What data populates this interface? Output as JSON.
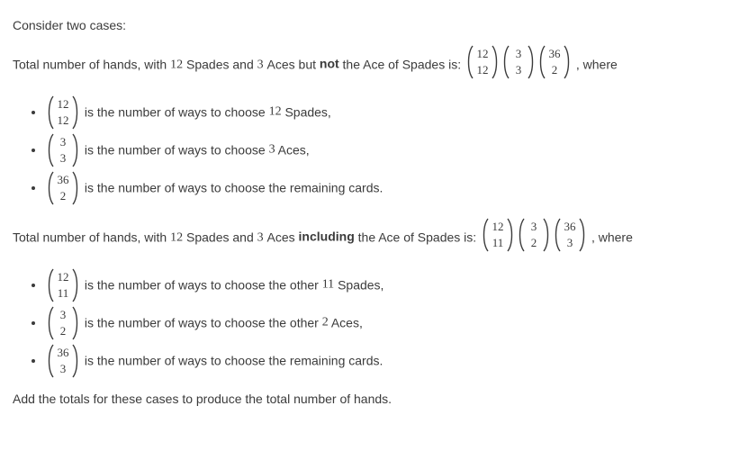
{
  "text_color": "#3b3b3b",
  "background_color": "#ffffff",
  "body_fontsize": 14,
  "math_fontsize": 13,
  "binom_height": 40,
  "intro": "Consider two cases:",
  "case1": {
    "lead": "Total number of hands, with ",
    "spades_n": "12",
    "spades_word": " Spades and ",
    "aces_n": "3",
    "aces_word": " Aces but ",
    "emph": "not",
    "after_emph": " the Ace of Spades is: ",
    "trailer": ", where",
    "products": [
      {
        "n": "12",
        "k": "12"
      },
      {
        "n": "3",
        "k": "3"
      },
      {
        "n": "36",
        "k": "2"
      }
    ],
    "bullets": [
      {
        "n": "12",
        "k": "12",
        "desc_pre": " is the number of ways to choose ",
        "desc_num": "12",
        "desc_post": " Spades,"
      },
      {
        "n": "3",
        "k": "3",
        "desc_pre": " is the number of ways to choose ",
        "desc_num": "3",
        "desc_post": " Aces,"
      },
      {
        "n": "36",
        "k": "2",
        "desc_pre": " is the number of ways to choose the remaining cards.",
        "desc_num": "",
        "desc_post": ""
      }
    ]
  },
  "case2": {
    "lead": "Total number of hands, with ",
    "spades_n": "12",
    "spades_word": " Spades and ",
    "aces_n": "3",
    "aces_word": " Aces ",
    "emph": "including",
    "after_emph": " the Ace of Spades is: ",
    "trailer": ", where",
    "products": [
      {
        "n": "12",
        "k": "11"
      },
      {
        "n": "3",
        "k": "2"
      },
      {
        "n": "36",
        "k": "3"
      }
    ],
    "bullets": [
      {
        "n": "12",
        "k": "11",
        "desc_pre": " is the number of ways to choose the other ",
        "desc_num": "11",
        "desc_post": " Spades,"
      },
      {
        "n": "3",
        "k": "2",
        "desc_pre": " is the number of ways to choose the other ",
        "desc_num": "2",
        "desc_post": " Aces,"
      },
      {
        "n": "36",
        "k": "3",
        "desc_pre": " is the number of ways to choose the remaining cards.",
        "desc_num": "",
        "desc_post": ""
      }
    ]
  },
  "conclusion": "Add the totals for these cases to produce the total number of hands."
}
